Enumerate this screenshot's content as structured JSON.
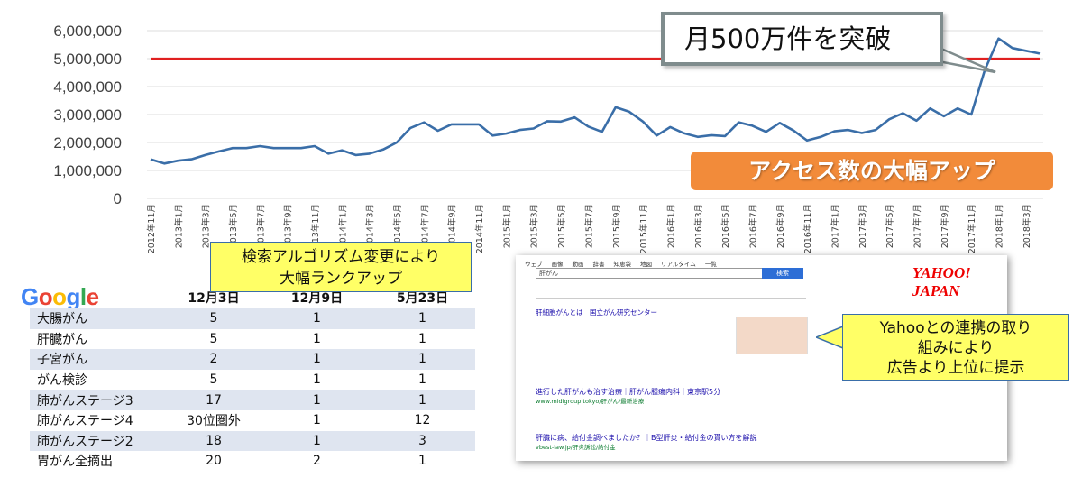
{
  "chart_data": {
    "type": "line",
    "x": [
      "2012年11月",
      "2012年12月",
      "2013年1月",
      "2013年2月",
      "2013年3月",
      "2013年4月",
      "2013年5月",
      "2013年6月",
      "2013年7月",
      "2013年8月",
      "2013年9月",
      "2013年10月",
      "2013年11月",
      "2013年12月",
      "2014年1月",
      "2014年2月",
      "2014年3月",
      "2014年4月",
      "2014年5月",
      "2014年6月",
      "2014年7月",
      "2014年8月",
      "2014年9月",
      "2014年10月",
      "2014年11月",
      "2014年12月",
      "2015年1月",
      "2015年2月",
      "2015年3月",
      "2015年4月",
      "2015年5月",
      "2015年6月",
      "2015年7月",
      "2015年8月",
      "2015年9月",
      "2015年10月",
      "2015年11月",
      "2015年12月",
      "2016年1月",
      "2016年2月",
      "2016年3月",
      "2016年4月",
      "2016年5月",
      "2016年6月",
      "2016年7月",
      "2016年8月",
      "2016年9月",
      "2016年10月",
      "2016年11月",
      "2016年12月",
      "2017年1月",
      "2017年2月",
      "2017年3月",
      "2017年4月",
      "2017年5月",
      "2017年6月",
      "2017年7月",
      "2017年8月",
      "2017年9月",
      "2017年10月",
      "2017年11月",
      "2017年12月",
      "2018年1月",
      "2018年2月",
      "2018年3月",
      "2018年4月"
    ],
    "x_tick_labels": [
      "2012年11月",
      "2013年1月",
      "2013年3月",
      "2013年5月",
      "2013年7月",
      "2013年9月",
      "2013年11月",
      "2014年1月",
      "2014年3月",
      "2014年5月",
      "2014年7月",
      "2014年9月",
      "2014年11月",
      "2015年1月",
      "2015年3月",
      "2015年5月",
      "2015年7月",
      "2015年9月",
      "2015年11月",
      "2016年1月",
      "2016年3月",
      "2016年5月",
      "2016年7月",
      "2016年9月",
      "2016年11月",
      "2017年1月",
      "2017年3月",
      "2017年5月",
      "2017年7月",
      "2017年9月",
      "2017年11月",
      "2018年1月",
      "2018年3月"
    ],
    "values": [
      1400000,
      1250000,
      1350000,
      1400000,
      1550000,
      1680000,
      1800000,
      1800000,
      1870000,
      1800000,
      1800000,
      1800000,
      1870000,
      1600000,
      1720000,
      1550000,
      1600000,
      1750000,
      2000000,
      2520000,
      2720000,
      2420000,
      2650000,
      2650000,
      2650000,
      2250000,
      2320000,
      2450000,
      2500000,
      2760000,
      2750000,
      2900000,
      2570000,
      2380000,
      3260000,
      3100000,
      2750000,
      2250000,
      2550000,
      2330000,
      2200000,
      2260000,
      2230000,
      2720000,
      2600000,
      2380000,
      2700000,
      2430000,
      2070000,
      2200000,
      2400000,
      2450000,
      2340000,
      2450000,
      2830000,
      3050000,
      2780000,
      3220000,
      2940000,
      3220000,
      3000000,
      4600000,
      5720000,
      5380000,
      5280000,
      5180000
    ],
    "ylim": [
      0,
      6000000
    ],
    "y_ticks": [
      0,
      1000000,
      2000000,
      3000000,
      4000000,
      5000000,
      6000000
    ],
    "y_tick_labels": [
      "0",
      "1,000,000",
      "2,000,000",
      "3,000,000",
      "4,000,000",
      "5,000,000",
      "6,000,000"
    ],
    "reference_line": {
      "value": 5000000,
      "color": "#e02020"
    },
    "line_color": "#3a6ea8",
    "grid": true,
    "annotations": {
      "callout": "月500万件を突破",
      "badge": "アクセス数の大幅アップ"
    }
  },
  "ranking": {
    "logo": "Google",
    "columns": [
      "12月3日",
      "12月9日",
      "5月23日"
    ],
    "rows": [
      {
        "keyword": "大腸がん",
        "d1": "5",
        "d2": "1",
        "d3": "1"
      },
      {
        "keyword": "肝臓がん",
        "d1": "5",
        "d2": "1",
        "d3": "1"
      },
      {
        "keyword": "子宮がん",
        "d1": "2",
        "d2": "1",
        "d3": "1"
      },
      {
        "keyword": "がん検診",
        "d1": "5",
        "d2": "1",
        "d3": "1"
      },
      {
        "keyword": "肺がんステージ3",
        "d1": "17",
        "d2": "1",
        "d3": "1"
      },
      {
        "keyword": "肺がんステージ4",
        "d1": "30位圏外",
        "d2": "1",
        "d3": "12"
      },
      {
        "keyword": "肺がんステージ2",
        "d1": "18",
        "d2": "1",
        "d3": "3"
      },
      {
        "keyword": "胃がん全摘出",
        "d1": "20",
        "d2": "2",
        "d3": "1"
      }
    ],
    "note_line1": "検索アルゴリズム変更により",
    "note_line2": "大幅ランクアップ"
  },
  "yahoo": {
    "nav": [
      "ウェブ",
      "画像",
      "動画",
      "辞書",
      "知恵袋",
      "地図",
      "リアルタイム",
      "一覧"
    ],
    "query": "肝がん",
    "search_button": "検索",
    "logo": "YAHOO! JAPAN",
    "result_title_1": "肝細胞がんとは　国立がん研究センター",
    "ad_title_1": "進行した肝がんも治す治療｜肝がん腫瘍内科｜東京駅5分",
    "ad_url_1": "www.midigroup.tokyo/肝がん/最新治療",
    "ad_title_2": "肝臓に病、給付金調べましたか？｜B型肝炎・給付金の貰い方を解説",
    "ad_url_2": "vbest-law.jp/肝炎訴訟/給付金",
    "note_line1": "Yahooとの連携の取り",
    "note_line2": "組みにより",
    "note_line3": "広告より上位に提示"
  }
}
